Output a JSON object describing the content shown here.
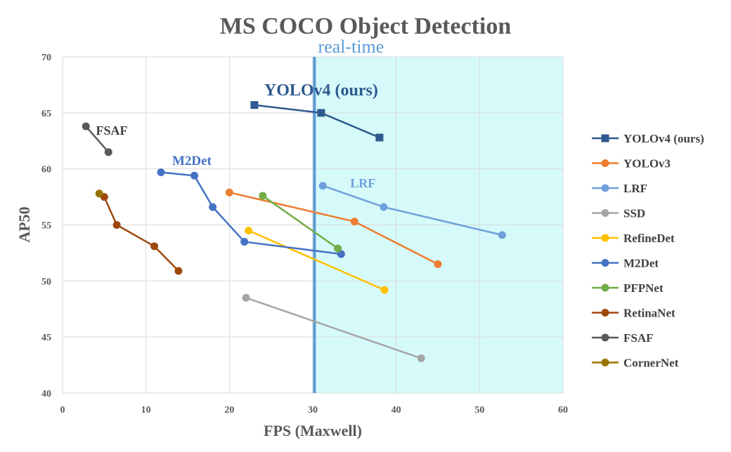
{
  "chart_data": {
    "type": "line",
    "title": "MS COCO Object Detection",
    "xlabel": "FPS (Maxwell)",
    "ylabel": "AP50",
    "xlim": [
      0,
      60
    ],
    "ylim": [
      40,
      70
    ],
    "xticks": [
      "0",
      "10",
      "20",
      "30",
      "40",
      "50",
      "60"
    ],
    "yticks": [
      "40",
      "45",
      "50",
      "55",
      "60",
      "65",
      "70"
    ],
    "grid": true,
    "legend_position": "right",
    "realtime_region": {
      "label": "real-time",
      "x_start": 30.2,
      "x_end": 60,
      "fill": "#d6fafa",
      "line_color": "#5b9bd5"
    },
    "series": [
      {
        "name": "YOLOv4 (ours)",
        "color": "#2e5a8f",
        "marker": "square",
        "points": [
          [
            23,
            65.7
          ],
          [
            31,
            65.0
          ],
          [
            38,
            62.8
          ]
        ]
      },
      {
        "name": "YOLOv3",
        "color": "#ed7d31",
        "marker": "circle",
        "points": [
          [
            20,
            57.9
          ],
          [
            35,
            55.3
          ],
          [
            45,
            51.5
          ]
        ]
      },
      {
        "name": "LRF",
        "color": "#6fa0dc",
        "marker": "circle",
        "points": [
          [
            31.2,
            58.5
          ],
          [
            38.5,
            56.6
          ],
          [
            52.7,
            54.1
          ]
        ]
      },
      {
        "name": "SSD",
        "color": "#a5a5a5",
        "marker": "circle",
        "points": [
          [
            22,
            48.5
          ],
          [
            43,
            43.1
          ]
        ]
      },
      {
        "name": "RefineDet",
        "color": "#ffc000",
        "marker": "circle",
        "points": [
          [
            22.3,
            54.5
          ],
          [
            38.6,
            49.2
          ]
        ]
      },
      {
        "name": "M2Det",
        "color": "#4472c4",
        "marker": "circle",
        "points": [
          [
            11.8,
            59.7
          ],
          [
            15.8,
            59.4
          ],
          [
            18,
            56.6
          ],
          [
            21.8,
            53.5
          ],
          [
            33.4,
            52.4
          ]
        ]
      },
      {
        "name": "PFPNet",
        "color": "#70ad47",
        "marker": "circle",
        "points": [
          [
            24,
            57.6
          ],
          [
            33,
            52.9
          ]
        ]
      },
      {
        "name": "RetinaNet",
        "color": "#9e480e",
        "marker": "circle",
        "points": [
          [
            5,
            57.5
          ],
          [
            6.5,
            55.0
          ],
          [
            11,
            53.1
          ],
          [
            13.9,
            50.9
          ]
        ]
      },
      {
        "name": "FSAF",
        "color": "#595959",
        "marker": "circle",
        "points": [
          [
            2.8,
            63.8
          ],
          [
            5.5,
            61.5
          ]
        ]
      },
      {
        "name": "CornerNet",
        "color": "#997300",
        "marker": "circle",
        "points": [
          [
            4.4,
            57.8
          ]
        ]
      }
    ],
    "annotations": [
      {
        "text": "YOLOv4 (ours)",
        "x": 31,
        "y": 67,
        "color": "#2e5a8f"
      },
      {
        "text": "FSAF",
        "x": 5.9,
        "y": 63.5,
        "color": "#404040"
      },
      {
        "text": "M2Det",
        "x": 15.5,
        "y": 60.8,
        "color": "#4472c4"
      },
      {
        "text": "LRF",
        "x": 36,
        "y": 58.8,
        "color": "#6fa0dc"
      }
    ]
  }
}
